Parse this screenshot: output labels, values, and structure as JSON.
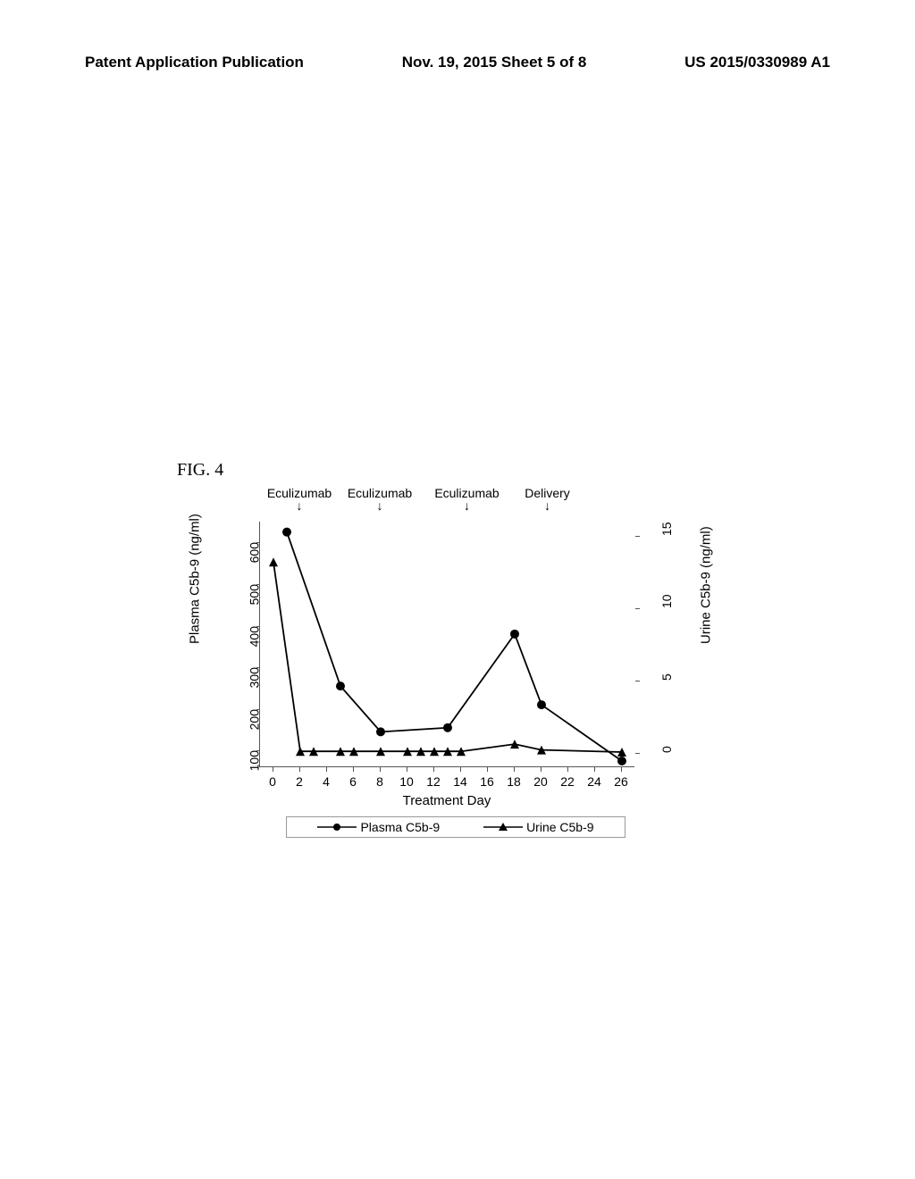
{
  "header": {
    "left": "Patent Application Publication",
    "center": "Nov. 19, 2015  Sheet 5 of 8",
    "right": "US 2015/0330989 A1"
  },
  "figure_label": "FIG. 4",
  "chart": {
    "type": "line",
    "background_color": "#ffffff",
    "axis_color": "#555555",
    "text_color": "#000000",
    "font_size_axis": 14,
    "font_size_label": 15,
    "xlim": [
      -1,
      27
    ],
    "xlabel": "Treatment Day",
    "xticks": [
      0,
      2,
      4,
      6,
      8,
      10,
      12,
      14,
      16,
      18,
      20,
      22,
      24,
      26
    ],
    "y_left_label": "Plasma C5b-9 (ng/ml)",
    "y_left_lim": [
      60,
      650
    ],
    "y_left_ticks": [
      100,
      200,
      300,
      400,
      500,
      600
    ],
    "y_right_label": "Urine C5b-9 (ng/ml)",
    "y_right_lim": [
      -1,
      16
    ],
    "y_right_ticks": [
      0,
      5,
      10,
      15
    ],
    "top_annotations": [
      {
        "label": "Eculizumab",
        "x": 2
      },
      {
        "label": "Eculizumab",
        "x": 8
      },
      {
        "label": "Eculizumab",
        "x": 14.5
      },
      {
        "label": "Delivery",
        "x": 20.5
      }
    ],
    "series": [
      {
        "name": "Plasma C5b-9",
        "axis": "left",
        "color": "#000000",
        "marker": "circle",
        "marker_size": 5,
        "line_width": 1.8,
        "data": [
          {
            "x": 1,
            "y": 625
          },
          {
            "x": 5,
            "y": 255
          },
          {
            "x": 8,
            "y": 145
          },
          {
            "x": 13,
            "y": 155
          },
          {
            "x": 18,
            "y": 380
          },
          {
            "x": 20,
            "y": 210
          },
          {
            "x": 26,
            "y": 75
          }
        ]
      },
      {
        "name": "Urine C5b-9",
        "axis": "right",
        "color": "#000000",
        "marker": "triangle",
        "marker_size": 5,
        "line_width": 1.8,
        "data": [
          {
            "x": 0,
            "y": 13.2
          },
          {
            "x": 2,
            "y": 0.1
          },
          {
            "x": 3,
            "y": 0.1
          },
          {
            "x": 5,
            "y": 0.1
          },
          {
            "x": 6,
            "y": 0.1
          },
          {
            "x": 8,
            "y": 0.1
          },
          {
            "x": 10,
            "y": 0.1
          },
          {
            "x": 11,
            "y": 0.1
          },
          {
            "x": 12,
            "y": 0.1
          },
          {
            "x": 13,
            "y": 0.1
          },
          {
            "x": 14,
            "y": 0.1
          },
          {
            "x": 18,
            "y": 0.6
          },
          {
            "x": 20,
            "y": 0.2
          },
          {
            "x": 26,
            "y": 0.05
          }
        ]
      }
    ],
    "legend": {
      "border_color": "#999999",
      "items": [
        {
          "label": "Plasma C5b-9",
          "marker": "circle"
        },
        {
          "label": "Urine C5b-9",
          "marker": "triangle"
        }
      ]
    }
  }
}
